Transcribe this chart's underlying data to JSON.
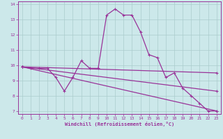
{
  "title": "",
  "xlabel": "Windchill (Refroidissement éolien,°C)",
  "ylabel": "",
  "background_color": "#cce8ea",
  "grid_color": "#aacccc",
  "line_color": "#993399",
  "xlim": [
    -0.5,
    23.5
  ],
  "ylim": [
    6.8,
    14.2
  ],
  "yticks": [
    7,
    8,
    9,
    10,
    11,
    12,
    13,
    14
  ],
  "xticks": [
    0,
    1,
    2,
    3,
    4,
    5,
    6,
    7,
    8,
    9,
    10,
    11,
    12,
    13,
    14,
    15,
    16,
    17,
    18,
    19,
    20,
    21,
    22,
    23
  ],
  "series1_x": [
    0,
    1,
    2,
    3,
    4,
    5,
    6,
    7,
    8,
    9,
    10,
    11,
    12,
    13,
    14,
    15,
    16,
    17,
    18,
    19,
    20,
    21,
    22,
    23
  ],
  "series1_y": [
    9.9,
    9.8,
    9.8,
    9.8,
    9.2,
    8.3,
    9.2,
    10.3,
    9.8,
    9.8,
    13.3,
    13.7,
    13.3,
    13.3,
    12.2,
    10.7,
    10.5,
    9.2,
    9.5,
    8.5,
    8.0,
    7.5,
    7.0,
    7.0
  ],
  "series2_x": [
    0,
    23
  ],
  "series2_y": [
    9.9,
    9.5
  ],
  "series3_x": [
    0,
    23
  ],
  "series3_y": [
    9.9,
    8.3
  ],
  "series4_x": [
    0,
    23
  ],
  "series4_y": [
    9.9,
    7.0
  ],
  "tick_fontsize": 4.5,
  "xlabel_fontsize": 5.0
}
